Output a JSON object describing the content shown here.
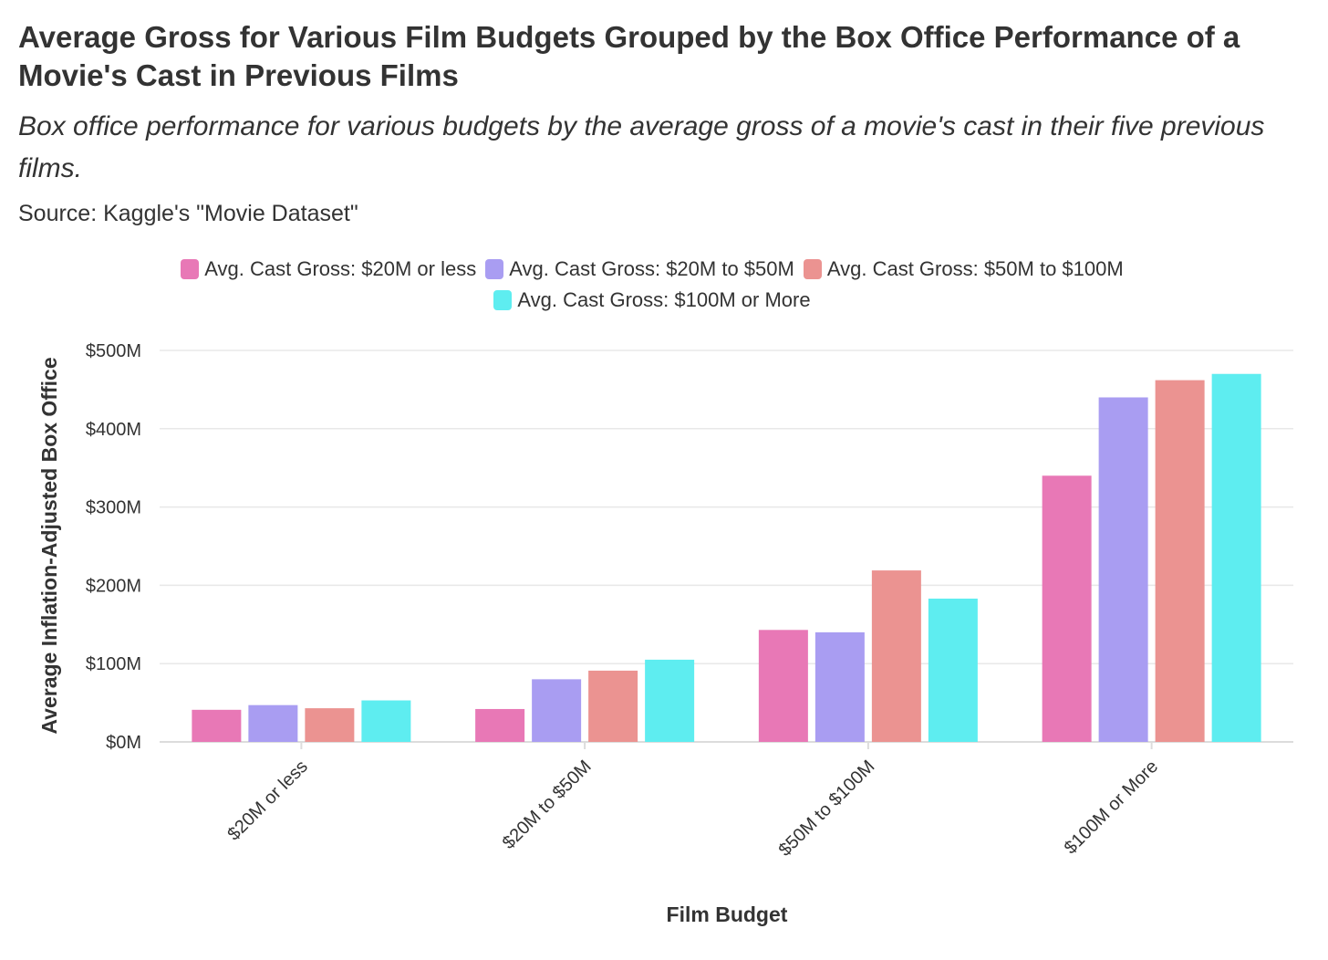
{
  "chart_data": {
    "type": "bar",
    "title": "Average Gross for Various Film Budgets Grouped by the Box Office Performance of a Movie's Cast in Previous Films",
    "subtitle": "Box office performance for various budgets by the average gross of a movie's cast in their five previous films.",
    "source": "Source: Kaggle's \"Movie Dataset\"",
    "xlabel": "Film Budget",
    "ylabel": "Average Inflation-Adjusted Box Office",
    "categories": [
      "$20M or less",
      "$20M to $50M",
      "$50M to $100M",
      "$100M or More"
    ],
    "ylim": [
      0,
      500
    ],
    "yticks": [
      0,
      100,
      200,
      300,
      400,
      500
    ],
    "ytick_labels": [
      "$0M",
      "$100M",
      "$200M",
      "$300M",
      "$400M",
      "$500M"
    ],
    "grid": true,
    "legend_position": "top-center",
    "series": [
      {
        "name": "Avg. Cast Gross: $20M or less",
        "color": "#e878b6",
        "values": [
          41,
          42,
          143,
          340
        ]
      },
      {
        "name": "Avg. Cast Gross: $20M to $50M",
        "color": "#a99df2",
        "values": [
          47,
          80,
          140,
          440
        ]
      },
      {
        "name": "Avg. Cast Gross: $50M to $100M",
        "color": "#eb9391",
        "values": [
          43,
          91,
          219,
          462
        ]
      },
      {
        "name": "Avg. Cast Gross: $100M or More",
        "color": "#5eedf0",
        "values": [
          53,
          105,
          183,
          470
        ]
      }
    ]
  }
}
